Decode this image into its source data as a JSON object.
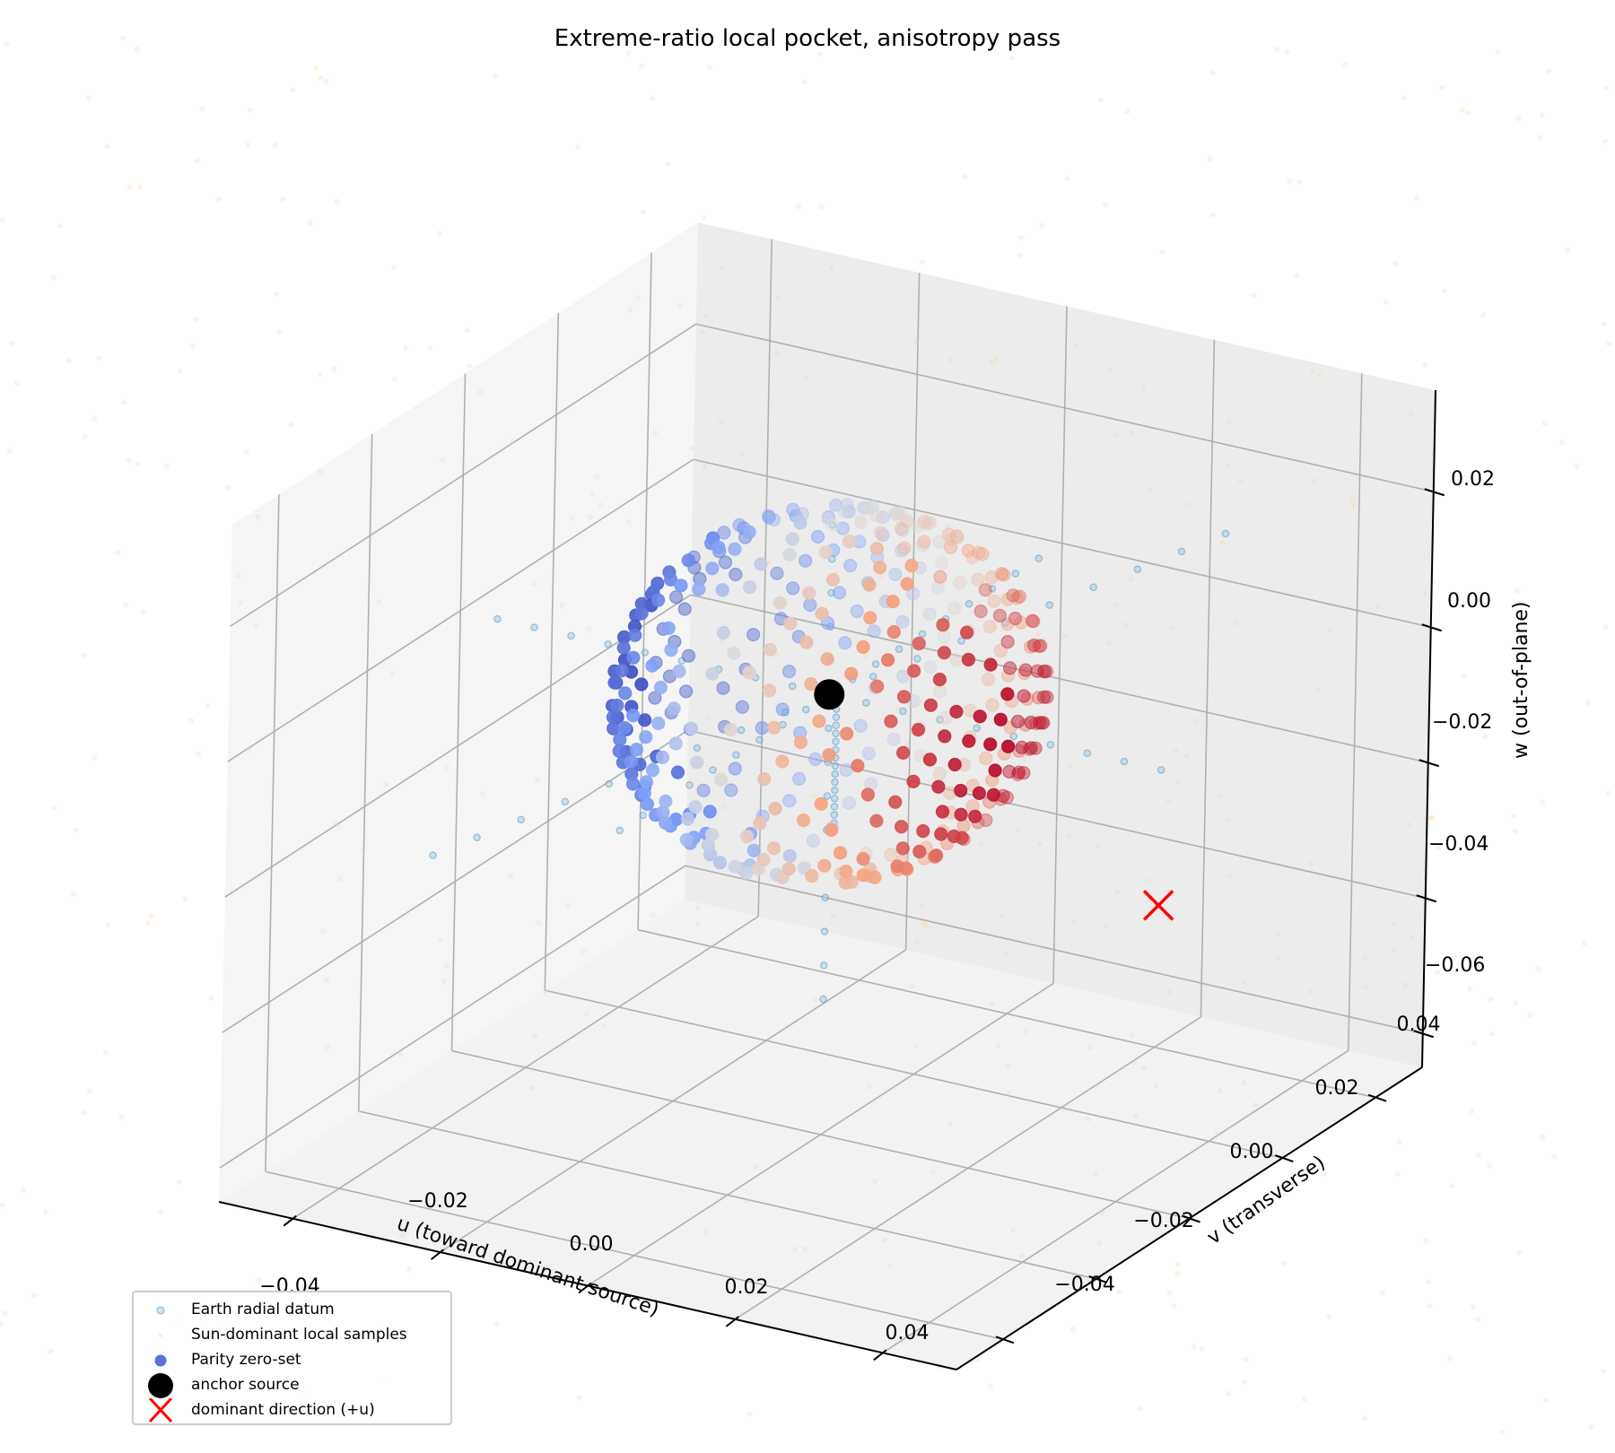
{
  "chart_data": {
    "type": "scatter",
    "projection": "3d",
    "title": "Extreme-ratio local pocket, anisotropy pass",
    "xlabel": "u (toward dominant source)",
    "ylabel": "v (transverse)",
    "zlabel": "w (out-of-plane)",
    "xlim": [
      -0.05,
      0.05
    ],
    "ylim": [
      -0.05,
      0.05
    ],
    "zlim": [
      -0.065,
      0.035
    ],
    "xticks": [
      "−0.04",
      "−0.02",
      "0.00",
      "0.02",
      "0.04"
    ],
    "yticks": [
      "−0.04",
      "−0.02",
      "0.00",
      "0.02",
      "0.04"
    ],
    "zticks": [
      "0.02",
      "0.00",
      "−0.02",
      "−0.04",
      "−0.06"
    ],
    "grid": true,
    "legend_position": "lower left",
    "series": [
      {
        "name": "Earth radial datum",
        "marker": "circle-small",
        "color": "#9ecae1",
        "alpha": 0.5,
        "description": "points on radial spokes along u, v and w axes through the anchor, spanning about ±0.045"
      },
      {
        "name": "Sun-dominant local samples",
        "marker": "dot-tiny",
        "color": "#fdd0a2",
        "alpha": 0.15,
        "description": "faint uniform cloud of samples covering the whole box"
      },
      {
        "name": "Parity zero-set",
        "marker": "circle",
        "colormap": "coolwarm",
        "description": "points on a sphere of radius ~0.025 centred on the anchor; colored blue (−u side) to red (+u side)"
      },
      {
        "name": "anchor source",
        "marker": "circle-large",
        "color": "#000000",
        "point": [
          0.0,
          0.0,
          0.0
        ]
      },
      {
        "name": "dominant direction (+u)",
        "marker": "x",
        "color": "#ff0000",
        "point": [
          0.045,
          0.0,
          -0.02
        ]
      }
    ]
  },
  "legend": {
    "items": [
      {
        "label": "Earth radial datum"
      },
      {
        "label": "Sun-dominant local samples"
      },
      {
        "label": "Parity zero-set"
      },
      {
        "label": "anchor source"
      },
      {
        "label": "dominant direction (+u)"
      }
    ]
  }
}
